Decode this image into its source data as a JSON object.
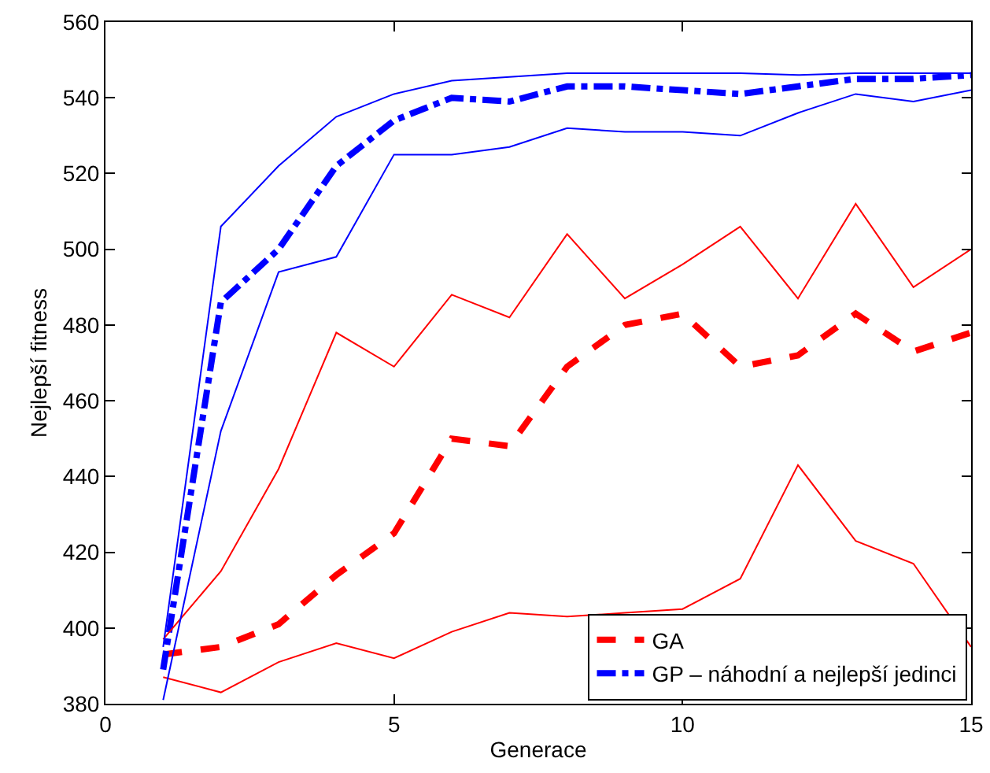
{
  "chart_data": {
    "type": "line",
    "xlabel": "Generace",
    "ylabel": "Nejlepší fitness",
    "x": [
      1,
      2,
      3,
      4,
      5,
      6,
      7,
      8,
      9,
      10,
      11,
      12,
      13,
      14,
      15
    ],
    "xlim": [
      0,
      15
    ],
    "xticks": [
      0,
      5,
      10,
      15
    ],
    "ylim": [
      380,
      560
    ],
    "yticks": [
      380,
      400,
      420,
      440,
      460,
      480,
      500,
      520,
      540,
      560
    ],
    "grid": false,
    "legend": "bottom right",
    "marker": "none",
    "series": [
      {
        "name": "GA",
        "color": "#ff0000",
        "line_style": "dashed",
        "values": [
          393,
          395,
          401,
          414,
          425,
          450,
          448,
          469,
          480,
          483,
          469,
          472,
          483,
          473,
          478
        ]
      },
      {
        "name": "GP – náhodní a nejlepší jedinci",
        "color": "#0000ff",
        "line_style": "dashdot",
        "values": [
          389,
          486,
          500,
          522,
          534,
          540,
          539,
          543,
          543,
          542,
          541,
          543,
          545,
          545,
          546
        ]
      },
      {
        "color": "#ff0000",
        "line_style": "solid",
        "values": [
          397,
          415,
          442,
          478,
          469,
          488,
          482,
          504,
          487,
          496,
          506,
          487,
          512,
          490,
          500
        ]
      },
      {
        "color": "#ff0000",
        "line_style": "solid",
        "values": [
          387,
          383,
          391,
          396,
          392,
          399,
          404,
          403,
          404,
          405,
          413,
          443,
          423,
          417,
          395
        ]
      },
      {
        "color": "#0000ff",
        "line_style": "solid",
        "values": [
          395,
          506,
          522,
          535,
          541,
          544.5,
          545.5,
          546.5,
          546.5,
          546.5,
          546.5,
          546,
          546.5,
          546.5,
          546.5
        ]
      },
      {
        "color": "#0000ff",
        "line_style": "solid",
        "values": [
          381,
          452,
          494,
          498,
          525,
          525,
          527,
          532,
          531,
          531,
          530,
          536,
          541,
          539,
          542
        ]
      }
    ]
  }
}
